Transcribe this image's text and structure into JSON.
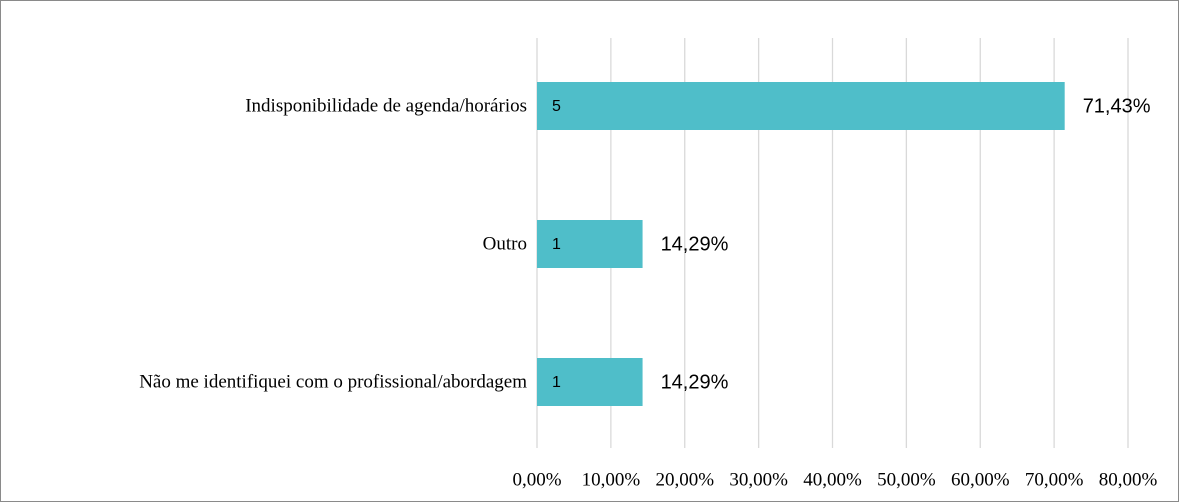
{
  "chart_data": {
    "type": "bar",
    "orientation": "horizontal",
    "categories": [
      "Indisponibilidade de agenda/horários",
      "Outro",
      "Não me identifiquei com o profissional/abordagem"
    ],
    "values": [
      71.43,
      14.29,
      14.29
    ],
    "value_labels": [
      "71,43%",
      "14,29%",
      "14,29%"
    ],
    "counts": [
      5,
      1,
      1
    ],
    "color": "#4fbec9",
    "xlim": [
      0,
      80
    ],
    "xticks": [
      {
        "value": 0,
        "label": "0,00%"
      },
      {
        "value": 10,
        "label": "10,00%"
      },
      {
        "value": 20,
        "label": "20,00%"
      },
      {
        "value": 30,
        "label": "30,00%"
      },
      {
        "value": 40,
        "label": "40,00%"
      },
      {
        "value": 50,
        "label": "50,00%"
      },
      {
        "value": 60,
        "label": "60,00%"
      },
      {
        "value": 70,
        "label": "70,00%"
      },
      {
        "value": 80,
        "label": "80,00%"
      }
    ],
    "grid": true
  }
}
